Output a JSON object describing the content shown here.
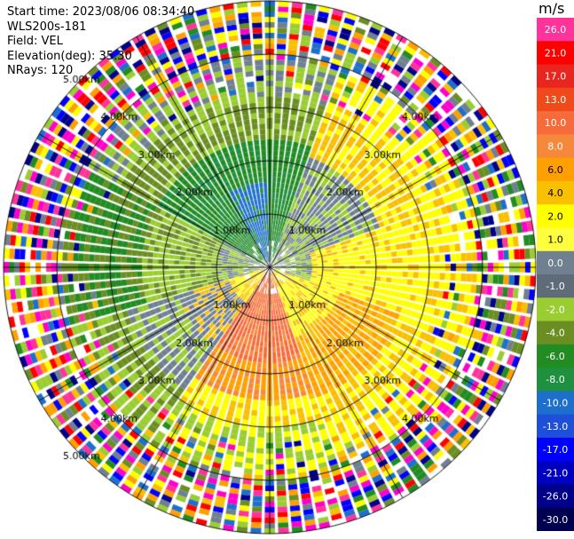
{
  "header": {
    "start_time": "Start time: 2023/08/06 08:34:40",
    "instrument": "WLS200s-181",
    "field": "Field: VEL",
    "elevation": "Elevation(deg): 35.30",
    "nrays": "NRays: 120"
  },
  "colorbar": {
    "unit": "m/s",
    "ticks": [
      "26.0",
      "21.0",
      "17.0",
      "13.0",
      "10.0",
      "8.0",
      "6.0",
      "4.0",
      "2.0",
      "1.0",
      "0.0",
      "-1.0",
      "-2.0",
      "-4.0",
      "-6.0",
      "-8.0",
      "-10.0",
      "-13.0",
      "-17.0",
      "-21.0",
      "-26.0",
      "-30.0"
    ],
    "colors": [
      "#ff3399",
      "#ff0000",
      "#e8251e",
      "#f04a1a",
      "#f76a3a",
      "#f5883a",
      "#ff9f00",
      "#f8c000",
      "#ffff00",
      "#ffff40",
      "#708090",
      "#5f6b78",
      "#9acd32",
      "#6b8e23",
      "#228b22",
      "#1e9040",
      "#1e6fcc",
      "#1e4fd8",
      "#0000ff",
      "#0000c0",
      "#00008b",
      "#000050"
    ]
  },
  "chart_data": {
    "type": "heatmap",
    "title": "",
    "projection": "polar (PPI scan)",
    "range_rings_km": [
      1,
      2,
      3,
      4,
      5
    ],
    "ring_labels": [
      "1.00km",
      "2.00km",
      "3.00km",
      "4.00km",
      "5.00km"
    ],
    "ring_label_quadrants": [
      "upper-left",
      "upper-right",
      "lower-left",
      "lower-right"
    ],
    "azimuth_spokes_deg": [
      0,
      30,
      60,
      90,
      120,
      150,
      180,
      210,
      240,
      270,
      300,
      330
    ],
    "rays": 120,
    "max_range_km": 5.0,
    "field": "VEL",
    "units": "m/s",
    "vmin": -30.0,
    "vmax": 26.0,
    "pattern": "Approaching (negative) velocities in northern/western sectors, receding (positive) in southern/eastern sectors; noise/clutter beyond ~3.5 km."
  }
}
